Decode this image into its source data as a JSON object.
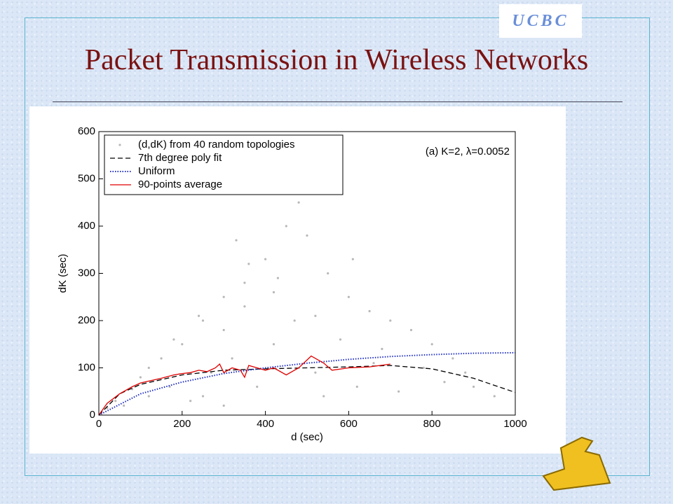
{
  "header": {
    "title": "Packet Transmission in Wireless Networks",
    "logo": "UCBC"
  },
  "chart_data": {
    "type": "scatter",
    "xlabel": "d (sec)",
    "ylabel": "dK (sec)",
    "annotation": "(a) K=2, λ=0.0052",
    "xlim": [
      0,
      1000
    ],
    "ylim": [
      0,
      600
    ],
    "xticks": [
      0,
      200,
      400,
      600,
      800,
      1000
    ],
    "yticks": [
      0,
      100,
      200,
      300,
      400,
      500,
      600
    ],
    "legend": "upper left",
    "series": [
      {
        "name": "(d,dK) from 40 random topologies",
        "color": "#b8b8b8",
        "style": "points",
        "x": [
          20,
          40,
          60,
          80,
          100,
          120,
          150,
          170,
          200,
          220,
          250,
          270,
          300,
          320,
          350,
          380,
          400,
          420,
          450,
          470,
          500,
          520,
          550,
          580,
          600,
          620,
          650,
          680,
          700,
          720,
          750,
          780,
          800,
          830,
          850,
          880,
          900,
          950,
          120,
          180,
          240,
          300,
          360,
          420,
          480,
          250,
          300,
          350,
          330,
          430,
          520,
          610,
          660,
          540
        ],
        "values": [
          15,
          30,
          20,
          55,
          80,
          40,
          120,
          60,
          150,
          30,
          200,
          90,
          250,
          120,
          280,
          60,
          330,
          150,
          400,
          200,
          380,
          90,
          300,
          160,
          250,
          60,
          220,
          140,
          200,
          50,
          180,
          100,
          150,
          70,
          120,
          90,
          60,
          40,
          100,
          160,
          210,
          180,
          320,
          260,
          450,
          40,
          20,
          230,
          370,
          290,
          210,
          330,
          110,
          40
        ]
      },
      {
        "name": "7th degree poly fit",
        "color": "#000000",
        "style": "dashed",
        "x": [
          0,
          50,
          100,
          200,
          300,
          400,
          500,
          600,
          700,
          800,
          900,
          1000
        ],
        "values": [
          0,
          45,
          65,
          85,
          95,
          98,
          100,
          102,
          105,
          98,
          78,
          48
        ]
      },
      {
        "name": "Uniform",
        "color": "#2030c0",
        "style": "dotted",
        "x": [
          0,
          100,
          200,
          300,
          400,
          500,
          600,
          700,
          800,
          900,
          1000
        ],
        "values": [
          0,
          45,
          70,
          88,
          100,
          110,
          118,
          124,
          128,
          131,
          132
        ]
      },
      {
        "name": "90-points average",
        "color": "#e00000",
        "style": "solid",
        "x": [
          0,
          20,
          50,
          80,
          100,
          120,
          150,
          180,
          200,
          220,
          240,
          260,
          280,
          290,
          300,
          320,
          340,
          350,
          360,
          380,
          400,
          420,
          450,
          480,
          510,
          540,
          560,
          600,
          650,
          700
        ],
        "values": [
          0,
          25,
          45,
          60,
          68,
          72,
          78,
          85,
          88,
          90,
          95,
          92,
          100,
          108,
          90,
          100,
          95,
          80,
          105,
          100,
          95,
          100,
          85,
          100,
          125,
          110,
          95,
          100,
          102,
          108
        ]
      }
    ]
  }
}
